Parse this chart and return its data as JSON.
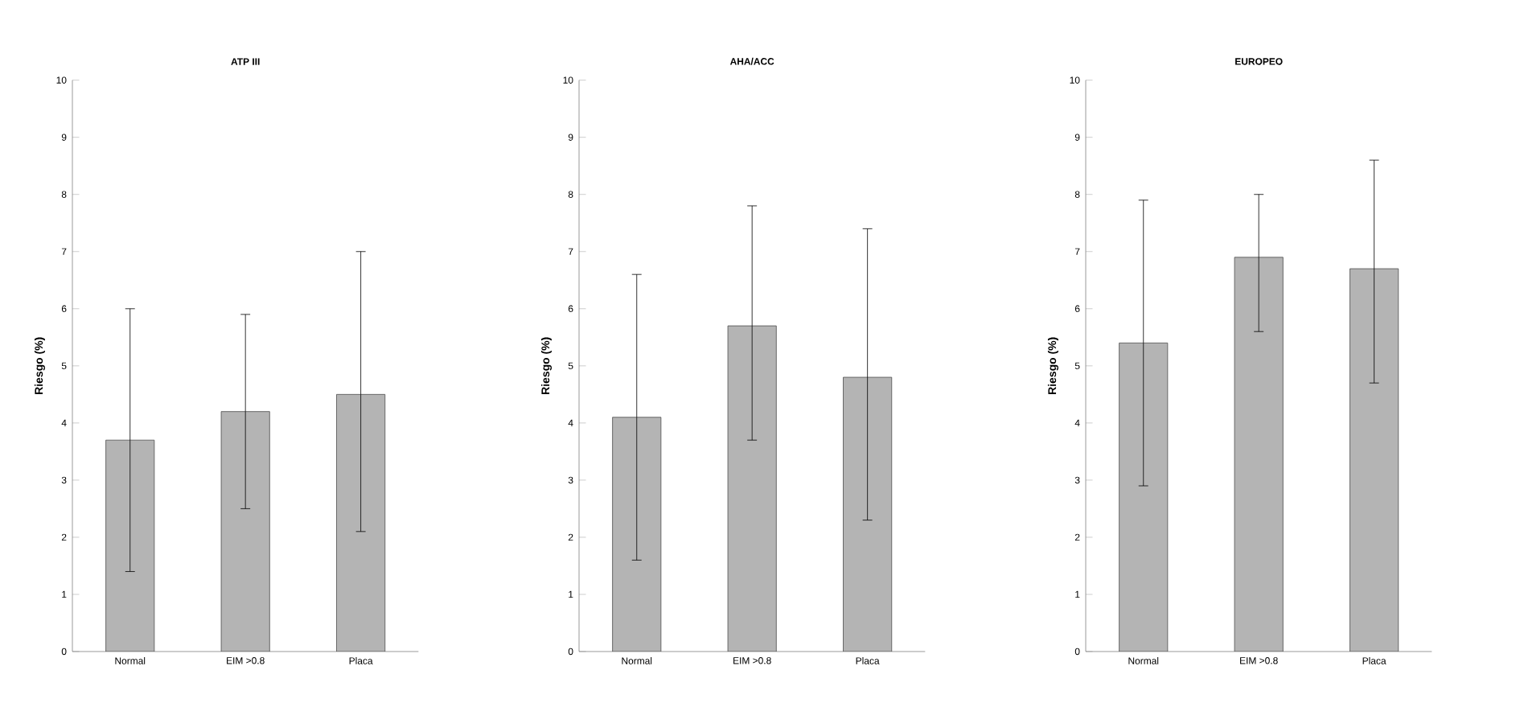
{
  "chart_data": [
    {
      "type": "bar",
      "title": "ATP III",
      "ylabel": "Riesgo (%)",
      "categories": [
        "Normal",
        "EIM >0.8",
        "Placa"
      ],
      "values": [
        3.7,
        4.2,
        4.5
      ],
      "errors": [
        [
          1.4,
          6.0
        ],
        [
          2.5,
          5.9
        ],
        [
          2.1,
          7.0
        ]
      ],
      "color": "#b4b4b4",
      "ylim": [
        0,
        10
      ],
      "yticks": [
        0,
        1,
        2,
        3,
        4,
        5,
        6,
        7,
        8,
        9,
        10
      ]
    },
    {
      "type": "bar",
      "title": "AHA/ACC",
      "ylabel": "Riesgo (%)",
      "categories": [
        "Normal",
        "EIM >0.8",
        "Placa"
      ],
      "values": [
        4.1,
        5.7,
        4.8
      ],
      "errors": [
        [
          1.6,
          6.6
        ],
        [
          3.7,
          7.8
        ],
        [
          2.3,
          7.4
        ]
      ],
      "color": "#b4b4b4",
      "ylim": [
        0,
        10
      ],
      "yticks": [
        0,
        1,
        2,
        3,
        4,
        5,
        6,
        7,
        8,
        9,
        10
      ]
    },
    {
      "type": "bar",
      "title": "EUROPEO",
      "ylabel": "Riesgo (%)",
      "categories": [
        "Normal",
        "EIM >0.8",
        "Placa"
      ],
      "values": [
        5.4,
        6.9,
        6.7
      ],
      "errors": [
        [
          2.9,
          7.9
        ],
        [
          5.6,
          8.0
        ],
        [
          4.7,
          8.6
        ]
      ],
      "color": "#b4b4b4",
      "ylim": [
        0,
        10
      ],
      "yticks": [
        0,
        1,
        2,
        3,
        4,
        5,
        6,
        7,
        8,
        9,
        10
      ]
    }
  ]
}
